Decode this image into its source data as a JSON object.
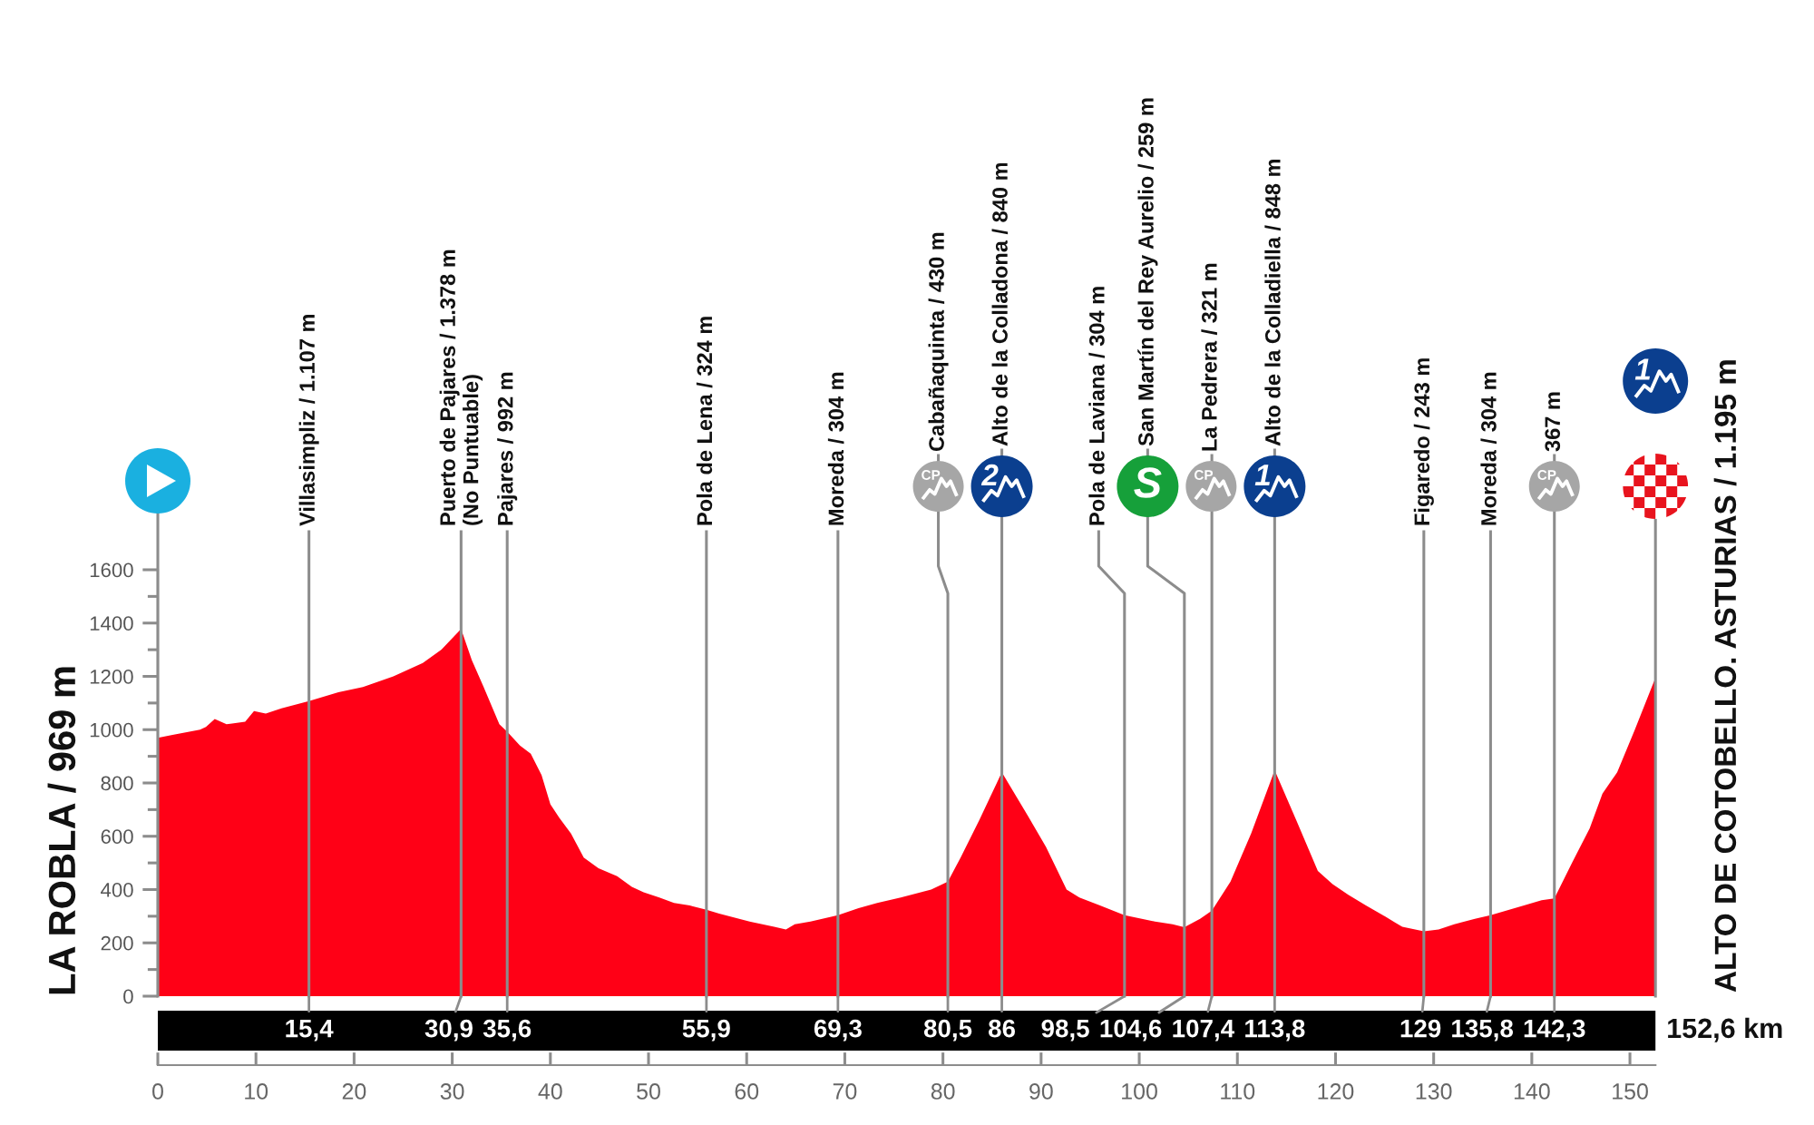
{
  "chart_data": {
    "type": "area",
    "color": "#ff0016",
    "x": [
      0,
      1.5,
      4.3,
      4.9,
      5.8,
      7.0,
      8.9,
      9.8,
      11.0,
      12.6,
      14.7,
      15.4,
      18.4,
      20.9,
      24.0,
      27.0,
      28.9,
      30.9,
      32.0,
      33.2,
      34.8,
      35.6,
      36.9,
      38.0,
      39.1,
      40.0,
      40.9,
      42.1,
      43.4,
      44.9,
      46.8,
      48.3,
      49.5,
      51.1,
      52.6,
      54.2,
      55.9,
      57.2,
      60.3,
      62.8,
      64.0,
      64.9,
      66.5,
      69.3,
      71.4,
      73.3,
      75.7,
      78.8,
      80.5,
      81.8,
      83.7,
      86,
      88.6,
      90.5,
      92.6,
      93.9,
      96.0,
      98.5,
      101.6,
      103.4,
      104.6,
      106.2,
      107.4,
      109.3,
      111.4,
      113.8,
      116.0,
      118.2,
      119.7,
      121.3,
      123.1,
      125.0,
      126.8,
      129,
      130.5,
      132.1,
      134.2,
      135.8,
      137.3,
      139.2,
      141.0,
      142.3,
      144.1,
      145.9,
      147.2,
      148.7,
      150.5,
      152.6
    ],
    "values": [
      969,
      980,
      1000,
      1010,
      1040,
      1020,
      1030,
      1070,
      1060,
      1080,
      1100,
      1107,
      1140,
      1160,
      1200,
      1250,
      1300,
      1378,
      1260,
      1160,
      1020,
      992,
      940,
      910,
      830,
      720,
      670,
      610,
      520,
      480,
      450,
      410,
      390,
      370,
      350,
      340,
      324,
      310,
      280,
      260,
      250,
      270,
      280,
      304,
      330,
      350,
      370,
      400,
      430,
      520,
      660,
      840,
      680,
      560,
      400,
      370,
      340,
      304,
      280,
      270,
      259,
      290,
      321,
      430,
      610,
      848,
      660,
      470,
      420,
      380,
      340,
      300,
      260,
      243,
      250,
      270,
      290,
      304,
      320,
      340,
      360,
      367,
      500,
      630,
      760,
      840,
      1000,
      1195
    ],
    "xlim": [
      0,
      152.6
    ],
    "ylim": [
      0,
      1600
    ],
    "xticks": [
      0,
      10,
      20,
      30,
      40,
      50,
      60,
      70,
      80,
      90,
      100,
      110,
      120,
      130,
      140,
      150
    ],
    "yticks": [
      0,
      {
        "value": 100,
        "label": null
      },
      200,
      {
        "value": 300,
        "label": null
      },
      400,
      {
        "value": 500,
        "label": null
      },
      600,
      {
        "value": 700,
        "label": null
      },
      800,
      {
        "value": 900,
        "label": null
      },
      1000,
      {
        "value": 1100,
        "label": null
      },
      1200,
      {
        "value": 1300,
        "label": null
      },
      1400,
      {
        "value": 1500,
        "label": null
      },
      1600
    ],
    "ref_lines": [
      {
        "axis": "x",
        "value": 15.4,
        "label": "Villasimpliz / 1.107 m"
      },
      {
        "axis": "x",
        "value": 30.9,
        "label": "Puerto de Pajares / 1.378 m\n(No Puntuable)"
      },
      {
        "axis": "x",
        "value": 35.6,
        "label": "Pajares / 992 m"
      },
      {
        "axis": "x",
        "value": 55.9,
        "label": "Pola de Lena / 324 m"
      },
      {
        "axis": "x",
        "value": 69.3,
        "label": "Moreda / 304 m"
      },
      {
        "axis": "x",
        "value": 80.5,
        "label": "Cabañaquinta / 430 m"
      },
      {
        "axis": "x",
        "value": 86,
        "label": "Alto de la Colladona / 840 m"
      },
      {
        "axis": "x",
        "value": 98.5,
        "label": "Pola de Laviana / 304 m"
      },
      {
        "axis": "x",
        "value": 104.6,
        "label": "San Martín del Rey Aurelio / 259 m"
      },
      {
        "axis": "x",
        "value": 107.4,
        "label": "La Pedrera / 321 m"
      },
      {
        "axis": "x",
        "value": 113.8,
        "label": "Alto de la Colladiella / 848 m"
      },
      {
        "axis": "x",
        "value": 129,
        "label": "Figaredo / 243 m"
      },
      {
        "axis": "x",
        "value": 135.8,
        "label": "Moreda / 304 m"
      },
      {
        "axis": "x",
        "value": 142.3,
        "label": "367 m"
      }
    ],
    "annotations": [
      {
        "text": "LA ROBLA / 969 m",
        "x": 0,
        "y": 969
      },
      {
        "text": "ALTO DE COTOBELLO. ASTURIAS / 1.195 m",
        "x": 152.6,
        "y": 1195
      },
      {
        "text": "15,4",
        "x": 15.4,
        "y": 0
      },
      {
        "text": "30,9",
        "x": 30.9,
        "y": 0
      },
      {
        "text": "35,6",
        "x": 35.6,
        "y": 0
      },
      {
        "text": "55,9",
        "x": 55.9,
        "y": 0
      },
      {
        "text": "69,3",
        "x": 69.3,
        "y": 0
      },
      {
        "text": "80,5",
        "x": 80.5,
        "y": 0
      },
      {
        "text": "86",
        "x": 86,
        "y": 0
      },
      {
        "text": "98,5",
        "x": 98.5,
        "y": 0
      },
      {
        "text": "104,6",
        "x": 104.6,
        "y": 0
      },
      {
        "text": "107,4",
        "x": 107.4,
        "y": 0
      },
      {
        "text": "113,8",
        "x": 113.8,
        "y": 0
      },
      {
        "text": "129",
        "x": 129,
        "y": 0
      },
      {
        "text": "135,8",
        "x": 135.8,
        "y": 0
      },
      {
        "text": "142,3",
        "x": 142.3,
        "y": 0
      },
      {
        "text": "152,6 km",
        "x": 152.6,
        "y": 0
      },
      "CP",
      "2",
      "S",
      "CP",
      "1",
      "CP",
      "1"
    ]
  }
}
